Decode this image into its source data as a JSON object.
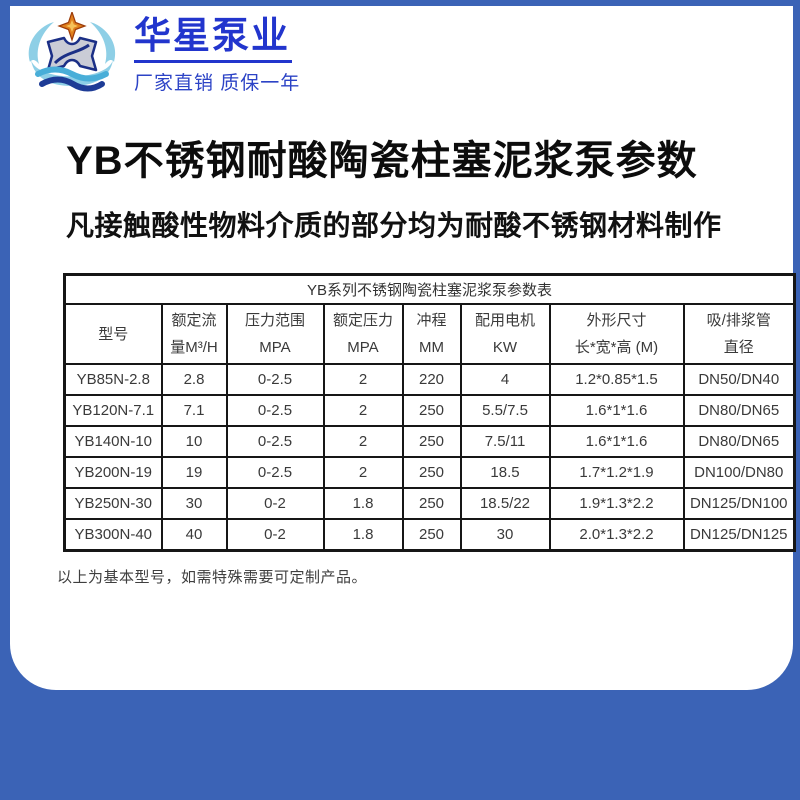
{
  "colors": {
    "page_background": "#3b63b6",
    "panel_background": "#ffffff",
    "brand_blue": "#2235cd",
    "table_border": "#161616"
  },
  "header": {
    "logo": {
      "brand": "华星泵业",
      "tagline": "厂家直销 质保一年"
    },
    "title": "YB不锈钢耐酸陶瓷柱塞泥浆泵参数",
    "subtitle": "凡接触酸性物料介质的部分均为耐酸不锈钢材料制作"
  },
  "table": {
    "caption": "YB系列不锈钢陶瓷柱塞泥浆泵参数表",
    "columns": [
      {
        "line1": "型号",
        "line2": ""
      },
      {
        "line1": "额定流",
        "line2": "量M³/H"
      },
      {
        "line1": "压力范围",
        "line2": "MPA"
      },
      {
        "line1": "额定压力",
        "line2": "MPA"
      },
      {
        "line1": "冲程",
        "line2": "MM"
      },
      {
        "line1": "配用电机",
        "line2": "KW"
      },
      {
        "line1": "外形尺寸",
        "line2": "长*宽*高 (M)"
      },
      {
        "line1": "吸/排浆管",
        "line2": "直径"
      }
    ],
    "rows": [
      [
        "YB85N-2.8",
        "2.8",
        "0-2.5",
        "2",
        "220",
        "4",
        "1.2*0.85*1.5",
        "DN50/DN40"
      ],
      [
        "YB120N-7.1",
        "7.1",
        "0-2.5",
        "2",
        "250",
        "5.5/7.5",
        "1.6*1*1.6",
        "DN80/DN65"
      ],
      [
        "YB140N-10",
        "10",
        "0-2.5",
        "2",
        "250",
        "7.5/11",
        "1.6*1*1.6",
        "DN80/DN65"
      ],
      [
        "YB200N-19",
        "19",
        "0-2.5",
        "2",
        "250",
        "18.5",
        "1.7*1.2*1.9",
        "DN100/DN80"
      ],
      [
        "YB250N-30",
        "30",
        "0-2",
        "1.8",
        "250",
        "18.5/22",
        "1.9*1.3*2.2",
        "DN125/DN100"
      ],
      [
        "YB300N-40",
        "40",
        "0-2",
        "1.8",
        "250",
        "30",
        "2.0*1.3*2.2",
        "DN125/DN125"
      ]
    ],
    "footnote": "以上为基本型号，如需特殊需要可定制产品。"
  }
}
